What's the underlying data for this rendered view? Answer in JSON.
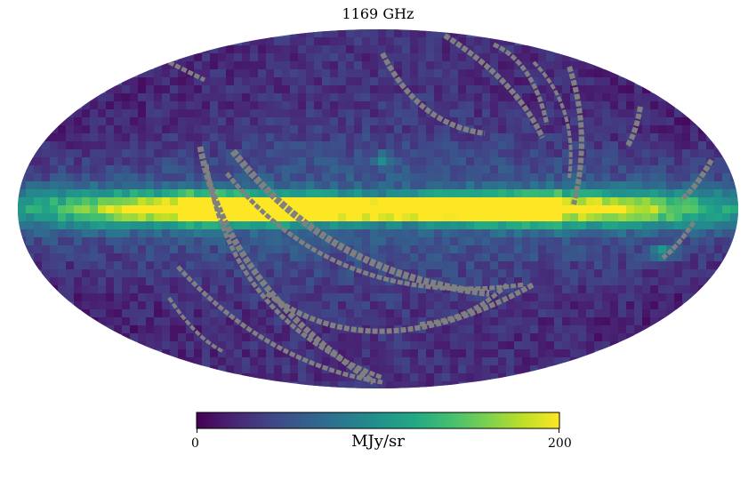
{
  "chart_data": {
    "type": "heatmap",
    "projection": "mollweide",
    "title": "1169 GHz",
    "colorbar": {
      "label": "MJy/sr",
      "min": 0,
      "max": 200,
      "tick_labels": [
        "0",
        "200"
      ],
      "colormap": "viridis",
      "orientation": "horizontal"
    },
    "masked_color": "#808080",
    "features": {
      "galactic_plane": "bright (saturated ~200 MJy/sr) along the equator, strongest in the central region",
      "background": "~20-60 MJy/sr across most of the sky",
      "masked_regions": "grey arcs (unobserved scan stripes)"
    }
  },
  "colors": {
    "masked": "#808080",
    "viridis_low": "#440154",
    "viridis_high": "#fde725"
  }
}
